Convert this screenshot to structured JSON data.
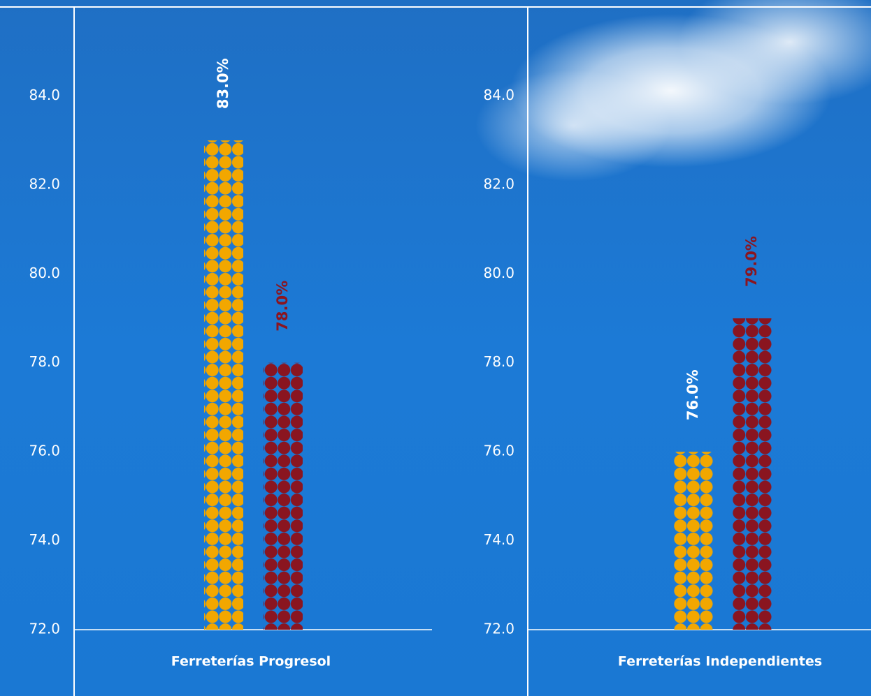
{
  "chart_data": [
    {
      "type": "bar",
      "xlabel": "Ferreterías Progresol",
      "values": [
        83.0,
        78.0
      ],
      "value_labels": [
        "83.0%",
        "78.0%"
      ],
      "colors": [
        "#f2a700",
        "#8a1520"
      ],
      "value_label_colors": [
        "#ffffff",
        "#8a1520"
      ],
      "ylim": [
        72,
        86
      ],
      "yticks": [
        {
          "value": 72,
          "label": "72.0"
        },
        {
          "value": 74,
          "label": "74.0"
        },
        {
          "value": 76,
          "label": "76.0"
        },
        {
          "value": 78,
          "label": "78.0"
        },
        {
          "value": 80,
          "label": "80.0"
        },
        {
          "value": 82,
          "label": "82.0"
        },
        {
          "value": 84,
          "label": "84.0"
        }
      ]
    },
    {
      "type": "bar",
      "xlabel": "Ferreterías Independientes",
      "values": [
        76.0,
        79.0
      ],
      "value_labels": [
        "76.0%",
        "79.0%"
      ],
      "colors": [
        "#f2a700",
        "#8a1520"
      ],
      "value_label_colors": [
        "#ffffff",
        "#8a1520"
      ],
      "ylim": [
        72,
        86
      ],
      "yticks": [
        {
          "value": 72,
          "label": "72.0"
        },
        {
          "value": 74,
          "label": "74.0"
        },
        {
          "value": 76,
          "label": "76.0"
        },
        {
          "value": 78,
          "label": "78.0"
        },
        {
          "value": 80,
          "label": "80.0"
        },
        {
          "value": 82,
          "label": "82.0"
        },
        {
          "value": 84,
          "label": "84.0"
        }
      ]
    }
  ]
}
